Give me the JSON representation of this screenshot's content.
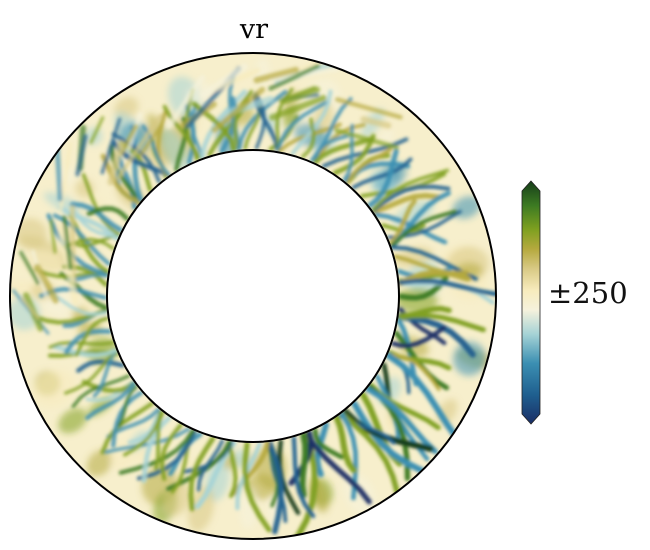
{
  "figure": {
    "title": "vr",
    "colorbar_label": "±250",
    "colormap": [
      "#1a2e66",
      "#1f5f8f",
      "#3b8fb2",
      "#a6d3d6",
      "#f6f2dc",
      "#f7ebbd",
      "#d8c984",
      "#b5a93e",
      "#7fa020",
      "#3c7a22",
      "#163d1a"
    ]
  },
  "plot": {
    "type": "annulus-contour",
    "variable": "vr",
    "range": [
      -250,
      250
    ]
  }
}
